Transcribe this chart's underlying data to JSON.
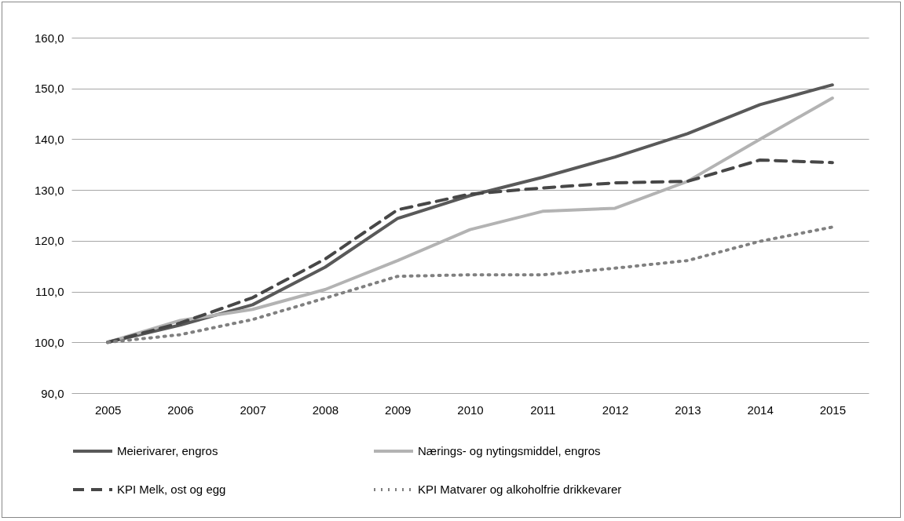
{
  "chart_data": {
    "type": "line",
    "categories": [
      "2005",
      "2006",
      "2007",
      "2008",
      "2009",
      "2010",
      "2011",
      "2012",
      "2013",
      "2014",
      "2015"
    ],
    "series": [
      {
        "name": "Meierivarer, engros",
        "color": "#595959",
        "line_style": "solid",
        "values": [
          100,
          103.4,
          107.4,
          114.8,
          124.4,
          128.9,
          132.5,
          136.5,
          141.1,
          146.8,
          150.7
        ]
      },
      {
        "name": "Nærings- og nytingsmiddel, engros",
        "color": "#b3b3b3",
        "line_style": "solid",
        "values": [
          100,
          104.3,
          106.5,
          110.4,
          116.1,
          122.2,
          125.8,
          126.4,
          131.7,
          140.0,
          148.1
        ]
      },
      {
        "name": "KPI Melk, ost og egg",
        "color": "#474747",
        "line_style": "dashed",
        "values": [
          100,
          103.8,
          108.8,
          116.4,
          126.1,
          129.2,
          130.4,
          131.4,
          131.7,
          135.9,
          135.4
        ]
      },
      {
        "name": "KPI Matvarer og alkoholfrie drikkevarer",
        "color": "#808080",
        "line_style": "dotted",
        "values": [
          100,
          101.5,
          104.5,
          108.7,
          113.0,
          113.3,
          113.3,
          114.6,
          116.1,
          119.9,
          122.7
        ]
      }
    ],
    "ylim": [
      90,
      160
    ],
    "yticks": [
      {
        "value": 90,
        "label": "90,0"
      },
      {
        "value": 100,
        "label": "100,0"
      },
      {
        "value": 110,
        "label": "110,0"
      },
      {
        "value": 120,
        "label": "120,0"
      },
      {
        "value": 130,
        "label": "130,0"
      },
      {
        "value": 140,
        "label": "140,0"
      },
      {
        "value": 150,
        "label": "150,0"
      },
      {
        "value": 160,
        "label": "160,0"
      }
    ],
    "grid": "y",
    "legend": "bottom"
  }
}
